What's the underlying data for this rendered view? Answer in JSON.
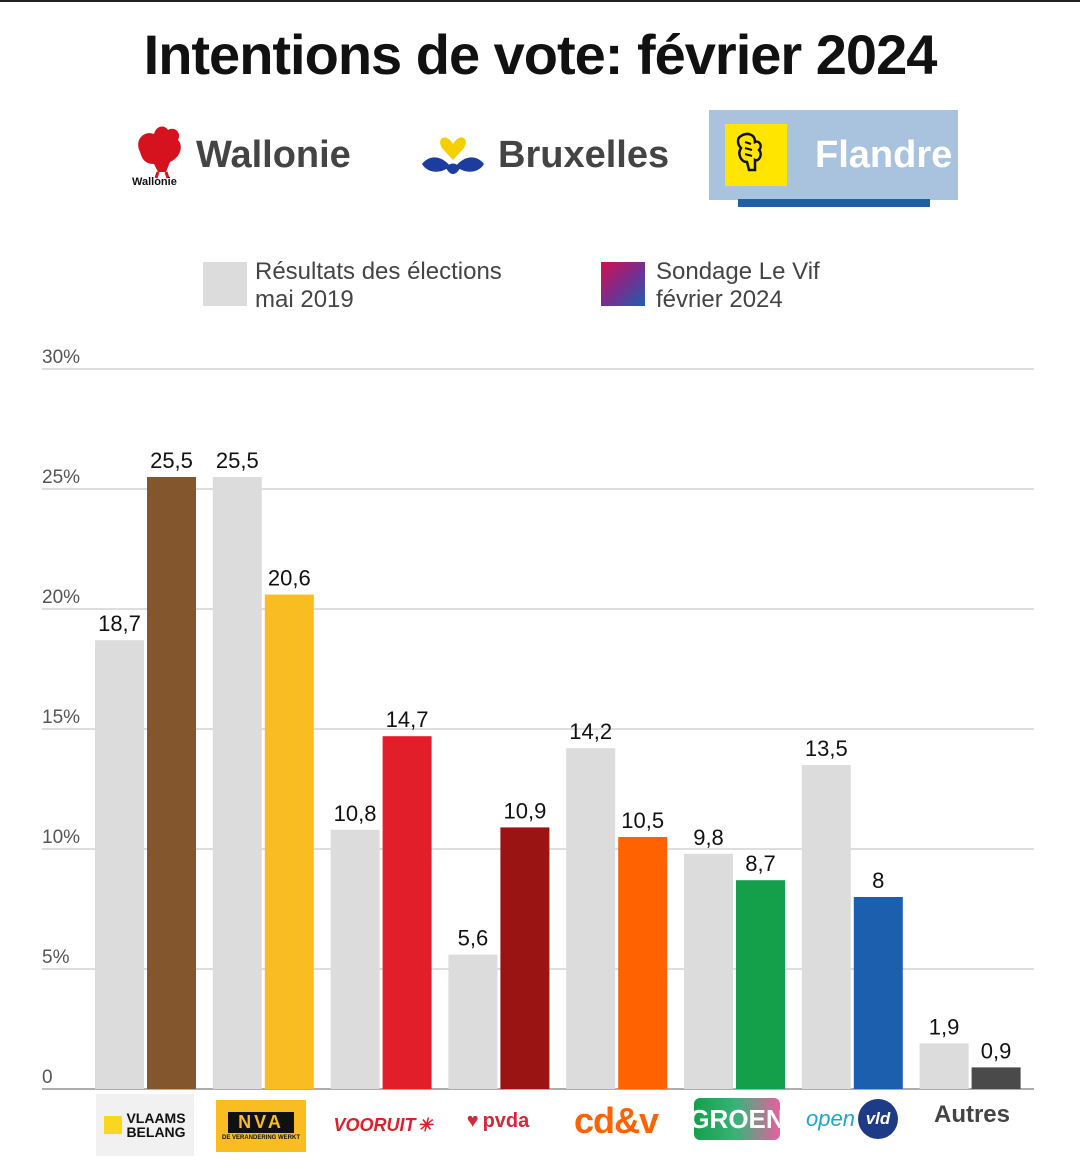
{
  "title": "Intentions de vote: février 2024",
  "regions": [
    {
      "label": "Wallonie",
      "logo_text": "Wallonie",
      "active": false
    },
    {
      "label": "Bruxelles",
      "active": false
    },
    {
      "label": "Flandre",
      "active": true
    }
  ],
  "legend": [
    {
      "label_line1": "Résultats des élections",
      "label_line2": "mai 2019",
      "color": "#dcdcdc"
    },
    {
      "label_line1": "Sondage Le Vif",
      "label_line2": "février 2024",
      "color": "#c4175a"
    }
  ],
  "party_logos": {
    "vb_line1": "VLAAMS",
    "vb_line2": "BELANG",
    "nva_main": "NVA",
    "nva_sub": "DE VERANDERING WERKT",
    "vooruit": "VOORUIT",
    "pvda": "pvda",
    "cdv": "cd&v",
    "groen": "GROEN",
    "open": "open",
    "vld": "vld",
    "autres": "Autres"
  },
  "chart_data": {
    "type": "bar",
    "categories": [
      "Vlaams Belang",
      "N-VA",
      "Vooruit",
      "PVDA",
      "cd&v",
      "Groen",
      "Open VLD",
      "Autres"
    ],
    "series": [
      {
        "name": "Résultats des élections mai 2019",
        "values": [
          18.7,
          25.5,
          10.8,
          5.6,
          14.2,
          9.8,
          13.5,
          1.9
        ],
        "labels": [
          "18,7",
          "25,5",
          "10,8",
          "5,6",
          "14,2",
          "9,8",
          "13,5",
          "1,9"
        ],
        "color": "#dcdcdc"
      },
      {
        "name": "Sondage Le Vif février 2024",
        "values": [
          25.5,
          20.6,
          14.7,
          10.9,
          10.5,
          8.7,
          8,
          0.9
        ],
        "labels": [
          "25,5",
          "20,6",
          "14,7",
          "10,9",
          "10,5",
          "8,7",
          "8",
          "0,9"
        ],
        "colors": [
          "#84562e",
          "#f9bd22",
          "#e11e2a",
          "#9a1414",
          "#ff6200",
          "#14a04a",
          "#1d5faf",
          "#4a4a4a"
        ]
      }
    ],
    "y_ticks": [
      "0",
      "5%",
      "10%",
      "15%",
      "20%",
      "25%",
      "30%"
    ],
    "ylim": [
      0,
      30
    ],
    "grid": true
  }
}
